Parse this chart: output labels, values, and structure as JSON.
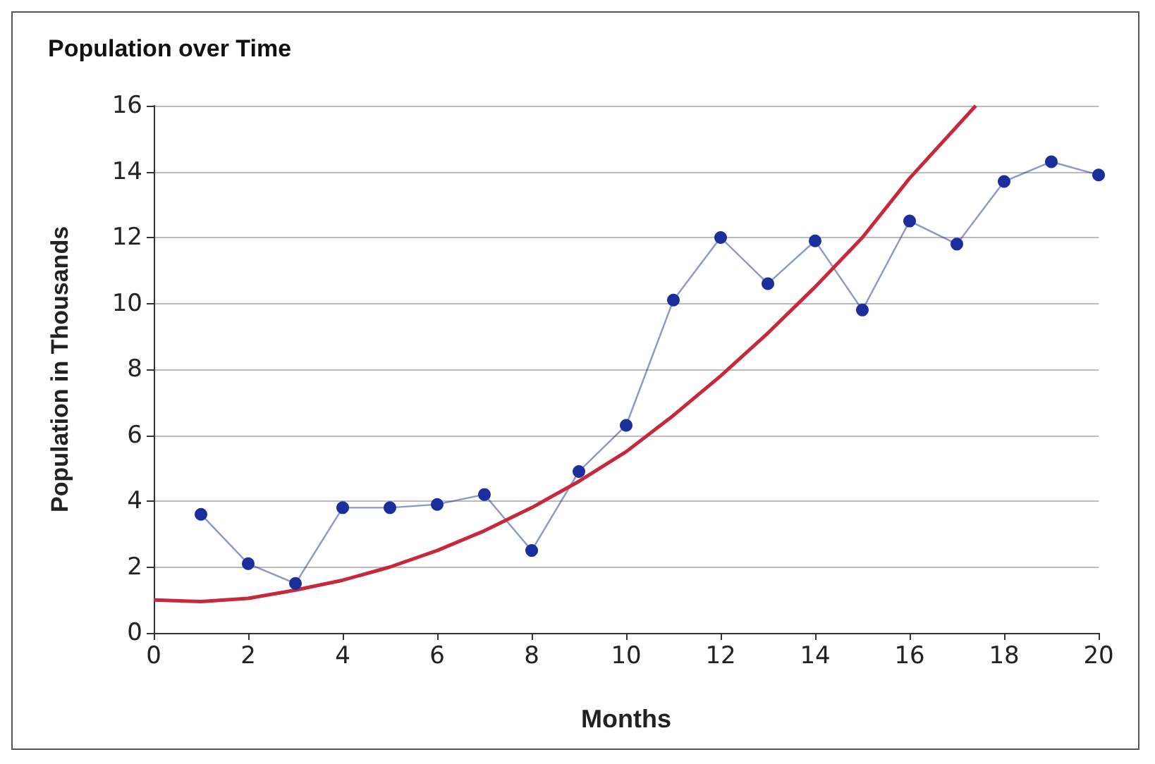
{
  "chart_data": {
    "type": "line",
    "title": "Population over Time",
    "xlabel": "Months",
    "ylabel": "Population in Thousands",
    "xlim": [
      0,
      20
    ],
    "xticks": [
      0,
      2,
      4,
      6,
      8,
      10,
      12,
      14,
      16,
      18,
      20
    ],
    "ylim": [
      0,
      16
    ],
    "yticks": [
      0,
      2,
      4,
      6,
      8,
      10,
      12,
      14,
      16
    ],
    "grid": "y",
    "series": [
      {
        "color": "#1a2e9c",
        "marker": "circle",
        "x": [
          1,
          2,
          3,
          4,
          5,
          6,
          7,
          8,
          9,
          10,
          11,
          12,
          13,
          14,
          15,
          16,
          17,
          18,
          19,
          20
        ],
        "values": [
          3.6,
          2.1,
          1.5,
          3.8,
          3.8,
          3.9,
          4.2,
          2.5,
          4.9,
          6.3,
          10.1,
          12.0,
          10.6,
          11.9,
          9.8,
          12.5,
          11.8,
          13.7,
          14.3,
          13.9
        ]
      },
      {
        "color": "#c8283c",
        "marker": "none",
        "x": [
          0,
          1,
          2,
          3,
          4,
          5,
          6,
          7,
          8,
          9,
          10,
          11,
          12,
          13,
          14,
          15,
          16,
          17.4
        ],
        "values": [
          1.0,
          0.95,
          1.05,
          1.3,
          1.6,
          2.0,
          2.5,
          3.1,
          3.8,
          4.6,
          5.5,
          6.6,
          7.8,
          9.1,
          10.5,
          12.0,
          13.8,
          16.0
        ]
      }
    ]
  }
}
